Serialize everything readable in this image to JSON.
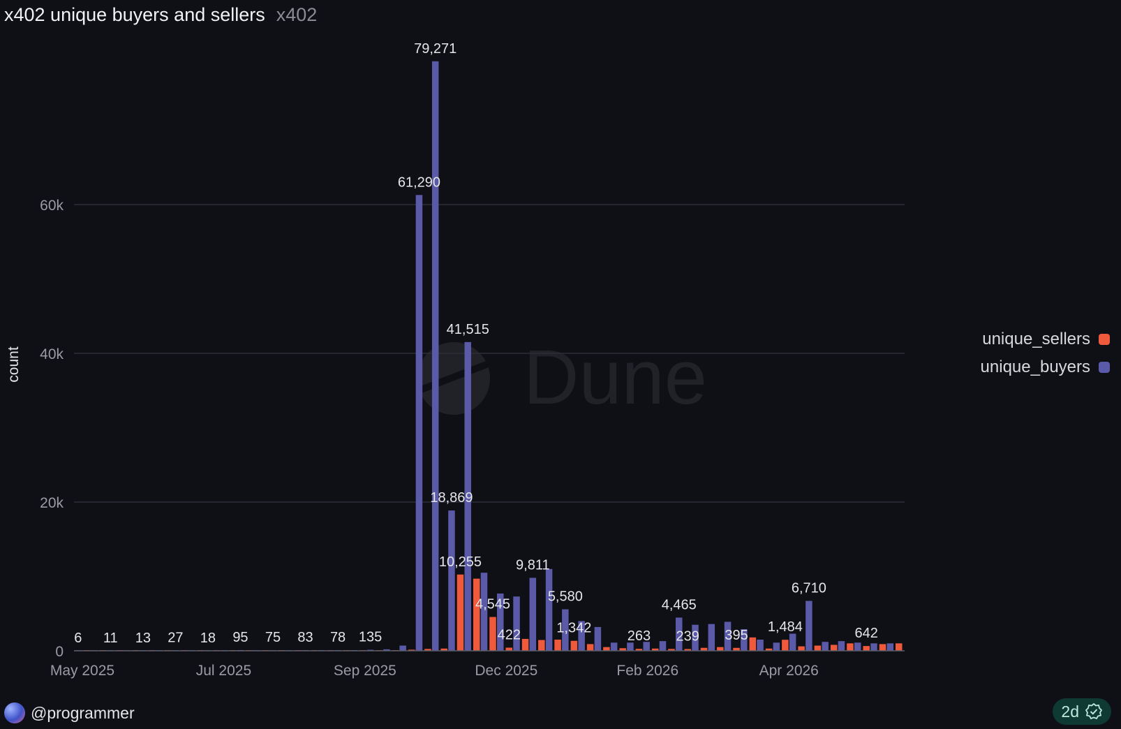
{
  "header": {
    "title": "x402 unique buyers and sellers",
    "subtitle": "x402"
  },
  "footer": {
    "user": "@programmer",
    "age": "2d"
  },
  "colors": {
    "sellers": "#f05a3c",
    "buyers": "#5a5aa8",
    "grid": "#2c2e38",
    "axis_text": "#9a9ba4",
    "label_text": "#e6e6ea"
  },
  "icons": {
    "avatar": "user-avatar",
    "verified": "verified-check-icon",
    "watermark": "dune-logo"
  },
  "chart_data": {
    "type": "bar",
    "title": "x402 unique buyers and sellers",
    "ylabel": "count",
    "xlabel": "",
    "ylim": [
      0,
      80000
    ],
    "yticks": [
      0,
      20000,
      40000,
      60000
    ],
    "ytick_labels": [
      "0",
      "20k",
      "40k",
      "60k"
    ],
    "x_tick_labels": [
      "May 2025",
      "Jul 2025",
      "Sep 2025",
      "Dec 2025",
      "Feb 2026",
      "Apr 2026"
    ],
    "x_tick_at_week": [
      0,
      8.7,
      17.4,
      26.1,
      34.8,
      43.5
    ],
    "grid": true,
    "legend_position": "right",
    "x": [
      "2025-05-05",
      "2025-05-12",
      "2025-05-19",
      "2025-05-26",
      "2025-06-02",
      "2025-06-09",
      "2025-06-16",
      "2025-06-23",
      "2025-06-30",
      "2025-07-07",
      "2025-07-14",
      "2025-07-21",
      "2025-07-28",
      "2025-08-04",
      "2025-08-11",
      "2025-08-18",
      "2025-08-25",
      "2025-09-01",
      "2025-09-08",
      "2025-09-15",
      "2025-09-22",
      "2025-09-29",
      "2025-10-06",
      "2025-10-13",
      "2025-10-20",
      "2025-10-27",
      "2025-11-03",
      "2025-11-10",
      "2025-11-17",
      "2025-11-24",
      "2025-12-01",
      "2025-12-08",
      "2025-12-15",
      "2025-12-22",
      "2025-12-29",
      "2026-01-05",
      "2026-01-12",
      "2026-01-19",
      "2026-01-26",
      "2026-02-02",
      "2026-02-09",
      "2026-02-16",
      "2026-02-23",
      "2026-03-02",
      "2026-03-09",
      "2026-03-16",
      "2026-03-23",
      "2026-03-30",
      "2026-04-06",
      "2026-04-13",
      "2026-04-20"
    ],
    "series": [
      {
        "name": "unique_sellers",
        "color": "#f05a3c",
        "values": [
          1,
          1,
          2,
          2,
          2,
          3,
          3,
          4,
          5,
          8,
          12,
          20,
          25,
          30,
          35,
          40,
          50,
          45,
          60,
          80,
          150,
          250,
          300,
          10255,
          9700,
          4545,
          422,
          1600,
          1450,
          1500,
          1342,
          900,
          500,
          350,
          263,
          300,
          250,
          239,
          400,
          500,
          395,
          1800,
          300,
          1484,
          600,
          700,
          800,
          1000,
          642,
          900,
          1000
        ]
      },
      {
        "name": "unique_buyers",
        "color": "#5a5aa8",
        "values": [
          6,
          8,
          11,
          12,
          13,
          20,
          27,
          22,
          18,
          40,
          95,
          80,
          75,
          70,
          83,
          80,
          78,
          90,
          135,
          200,
          700,
          61290,
          79271,
          18869,
          41515,
          10500,
          7700,
          7300,
          9811,
          11000,
          5580,
          4000,
          3200,
          1100,
          1100,
          1200,
          1300,
          4465,
          3500,
          3600,
          3900,
          2900,
          1500,
          1100,
          2300,
          6710,
          1200,
          1300,
          1100,
          1000,
          1000
        ]
      }
    ],
    "data_labels": [
      {
        "series": 1,
        "index": 0,
        "text": "6"
      },
      {
        "series": 1,
        "index": 2,
        "text": "11"
      },
      {
        "series": 1,
        "index": 4,
        "text": "13"
      },
      {
        "series": 1,
        "index": 6,
        "text": "27"
      },
      {
        "series": 1,
        "index": 8,
        "text": "18"
      },
      {
        "series": 1,
        "index": 10,
        "text": "95"
      },
      {
        "series": 1,
        "index": 12,
        "text": "75"
      },
      {
        "series": 1,
        "index": 14,
        "text": "83"
      },
      {
        "series": 1,
        "index": 16,
        "text": "78"
      },
      {
        "series": 1,
        "index": 18,
        "text": "135"
      },
      {
        "series": 1,
        "index": 21,
        "text": "61,290"
      },
      {
        "series": 1,
        "index": 22,
        "text": "79,271"
      },
      {
        "series": 1,
        "index": 23,
        "text": "18,869"
      },
      {
        "series": 0,
        "index": 23,
        "text": "10,255"
      },
      {
        "series": 1,
        "index": 24,
        "text": "41,515"
      },
      {
        "series": 0,
        "index": 25,
        "text": "4,545"
      },
      {
        "series": 0,
        "index": 26,
        "text": "422"
      },
      {
        "series": 1,
        "index": 28,
        "text": "9,811"
      },
      {
        "series": 0,
        "index": 30,
        "text": "1,342"
      },
      {
        "series": 1,
        "index": 30,
        "text": "5,580"
      },
      {
        "series": 0,
        "index": 34,
        "text": "263"
      },
      {
        "series": 0,
        "index": 37,
        "text": "239"
      },
      {
        "series": 1,
        "index": 37,
        "text": "4,465"
      },
      {
        "series": 0,
        "index": 40,
        "text": "395"
      },
      {
        "series": 0,
        "index": 43,
        "text": "1,484"
      },
      {
        "series": 1,
        "index": 45,
        "text": "6,710"
      },
      {
        "series": 0,
        "index": 48,
        "text": "642"
      }
    ]
  }
}
